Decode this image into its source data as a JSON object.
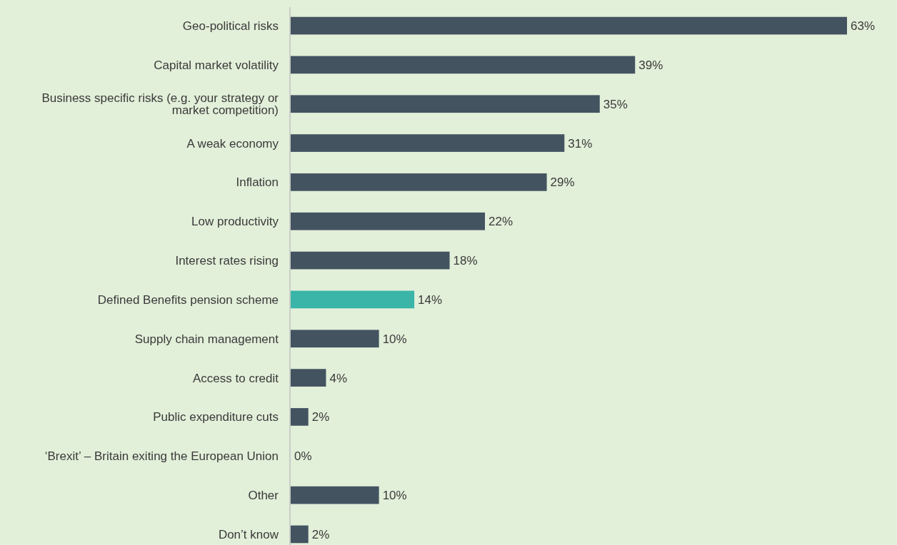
{
  "chart_data": {
    "type": "bar",
    "orientation": "horizontal",
    "categories": [
      "Geo-political risks",
      "Capital market volatility",
      "Business specific risks (e.g. your strategy or market competition)",
      "A weak economy",
      "Inflation",
      "Low productivity",
      "Interest rates rising",
      "Defined Benefits pension scheme",
      "Supply chain management",
      "Access to credit",
      "Public expenditure cuts",
      "‘Brexit’ – Britain exiting the European Union",
      "Other",
      "Don’t know"
    ],
    "values": [
      63,
      39,
      35,
      31,
      29,
      22,
      18,
      14,
      10,
      4,
      2,
      0,
      10,
      2
    ],
    "colors": [
      "#435360",
      "#435360",
      "#435360",
      "#435360",
      "#435360",
      "#435360",
      "#435360",
      "#3ab5a8",
      "#435360",
      "#435360",
      "#435360",
      "#435360",
      "#435360",
      "#435360"
    ],
    "value_labels": [
      "63%",
      "39%",
      "35%",
      "31%",
      "29%",
      "22%",
      "18%",
      "14%",
      "10%",
      "4%",
      "2%",
      "0%",
      "10%",
      "2%"
    ]
  }
}
